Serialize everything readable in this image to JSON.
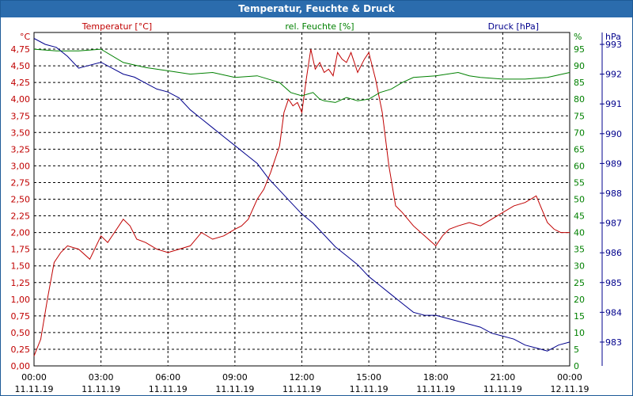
{
  "window": {
    "title": "Temperatur, Feuchte & Druck"
  },
  "chart_data": {
    "type": "line",
    "title": "Temperatur, Feuchte & Druck",
    "colors": {
      "temperature": "#c00000",
      "humidity": "#008000",
      "pressure": "#00008c",
      "grid": "#000000"
    },
    "x_tick_times": [
      "00:00",
      "03:00",
      "06:00",
      "09:00",
      "12:00",
      "15:00",
      "18:00",
      "21:00",
      "00:00"
    ],
    "x_tick_dates": [
      "11.11.19",
      "11.11.19",
      "11.11.19",
      "11.11.19",
      "11.11.19",
      "11.11.19",
      "11.11.19",
      "11.11.19",
      "12.11.19"
    ],
    "xlim": [
      0,
      24
    ],
    "axes": {
      "temperature": {
        "label": "Temperatur [°C]",
        "unit": "°C",
        "ylim": [
          0,
          5.0
        ],
        "ticks": [
          "0,00",
          "0,25",
          "0,50",
          "0,75",
          "1,00",
          "1,25",
          "1,50",
          "1,75",
          "2,00",
          "2,25",
          "2,50",
          "2,75",
          "3,00",
          "3,25",
          "3,50",
          "3,75",
          "4,00",
          "4,25",
          "4,50",
          "4,75"
        ]
      },
      "humidity": {
        "label": "rel. Feuchte [%]",
        "unit": "%",
        "ylim": [
          0,
          100
        ],
        "ticks": [
          "0",
          "5",
          "10",
          "15",
          "20",
          "25",
          "30",
          "35",
          "40",
          "45",
          "50",
          "55",
          "60",
          "65",
          "70",
          "75",
          "80",
          "85",
          "90",
          "95"
        ]
      },
      "pressure": {
        "label": "Druck [hPa]",
        "unit": "hPa",
        "ylim": [
          982.2,
          993.4
        ],
        "ticks": [
          "983",
          "984",
          "985",
          "986",
          "987",
          "988",
          "989",
          "990",
          "991",
          "992",
          "993"
        ]
      }
    },
    "series": [
      {
        "name": "Temperatur",
        "axis": "temperature",
        "x": [
          0,
          0.3,
          0.6,
          0.9,
          1.2,
          1.5,
          2,
          2.5,
          3,
          3.3,
          3.6,
          4,
          4.3,
          4.6,
          5,
          5.5,
          6,
          6.5,
          7,
          7.5,
          8,
          8.5,
          9,
          9.3,
          9.6,
          10,
          10.3,
          10.6,
          11,
          11.2,
          11.4,
          11.6,
          11.8,
          12,
          12.2,
          12.4,
          12.6,
          12.8,
          13,
          13.2,
          13.4,
          13.6,
          13.8,
          14,
          14.2,
          14.5,
          14.8,
          15,
          15.3,
          15.6,
          15.9,
          16.2,
          16.5,
          17,
          17.5,
          18,
          18.3,
          18.6,
          19,
          19.5,
          20,
          20.5,
          21,
          21.5,
          22,
          22.5,
          23,
          23.3,
          23.6,
          24
        ],
        "values": [
          0.15,
          0.4,
          1.0,
          1.55,
          1.7,
          1.8,
          1.75,
          1.6,
          1.95,
          1.85,
          2.0,
          2.2,
          2.1,
          1.9,
          1.85,
          1.75,
          1.7,
          1.75,
          1.8,
          2.0,
          1.9,
          1.95,
          2.05,
          2.1,
          2.2,
          2.5,
          2.65,
          2.9,
          3.3,
          3.8,
          4.0,
          3.9,
          3.95,
          3.8,
          4.3,
          4.75,
          4.45,
          4.55,
          4.4,
          4.45,
          4.35,
          4.7,
          4.6,
          4.55,
          4.7,
          4.4,
          4.6,
          4.7,
          4.3,
          3.8,
          3.0,
          2.4,
          2.3,
          2.1,
          1.95,
          1.8,
          1.95,
          2.05,
          2.1,
          2.15,
          2.1,
          2.2,
          2.3,
          2.4,
          2.45,
          2.55,
          2.15,
          2.05,
          2.0,
          2.0
        ]
      },
      {
        "name": "rel. Feuchte",
        "axis": "humidity",
        "x": [
          0,
          1,
          2,
          3,
          4,
          5,
          6,
          7,
          8,
          9,
          10,
          11,
          11.5,
          12,
          12.5,
          12.8,
          13,
          13.5,
          14,
          14.5,
          15,
          15.5,
          16,
          16.5,
          17,
          18,
          19,
          19.5,
          20,
          21,
          22,
          23,
          24
        ],
        "values": [
          95,
          94.5,
          94.5,
          95,
          91,
          89.5,
          88.5,
          87.5,
          88,
          86.5,
          87,
          85,
          82,
          81,
          82,
          80,
          79.5,
          79,
          80.5,
          79.5,
          80,
          82,
          83,
          85,
          86.5,
          87,
          88,
          87,
          86.5,
          86,
          86,
          86.5,
          88
        ]
      },
      {
        "name": "Druck",
        "axis": "pressure",
        "x": [
          0,
          0.5,
          1,
          1.5,
          2,
          2.5,
          3,
          3.5,
          4,
          4.5,
          5,
          5.5,
          6,
          6.5,
          7,
          7.5,
          8,
          8.5,
          9,
          9.5,
          10,
          10.5,
          11,
          11.5,
          12,
          12.5,
          13,
          13.5,
          14,
          14.5,
          15,
          15.5,
          16,
          16.5,
          17,
          17.5,
          18,
          18.5,
          19,
          19.5,
          20,
          20.5,
          21,
          21.5,
          22,
          22.5,
          23,
          23.5,
          24
        ],
        "values": [
          993.2,
          993.0,
          992.9,
          992.6,
          992.2,
          992.3,
          992.4,
          992.2,
          992.0,
          991.9,
          991.7,
          991.5,
          991.4,
          991.2,
          990.8,
          990.5,
          990.2,
          989.9,
          989.6,
          989.3,
          989.0,
          988.5,
          988.1,
          987.7,
          987.3,
          987.0,
          986.6,
          986.2,
          985.9,
          985.6,
          985.2,
          984.9,
          984.6,
          984.3,
          984.0,
          983.9,
          983.9,
          983.8,
          983.7,
          983.6,
          983.5,
          983.3,
          983.2,
          983.1,
          982.9,
          982.8,
          982.7,
          982.9,
          983.0
        ]
      }
    ]
  }
}
